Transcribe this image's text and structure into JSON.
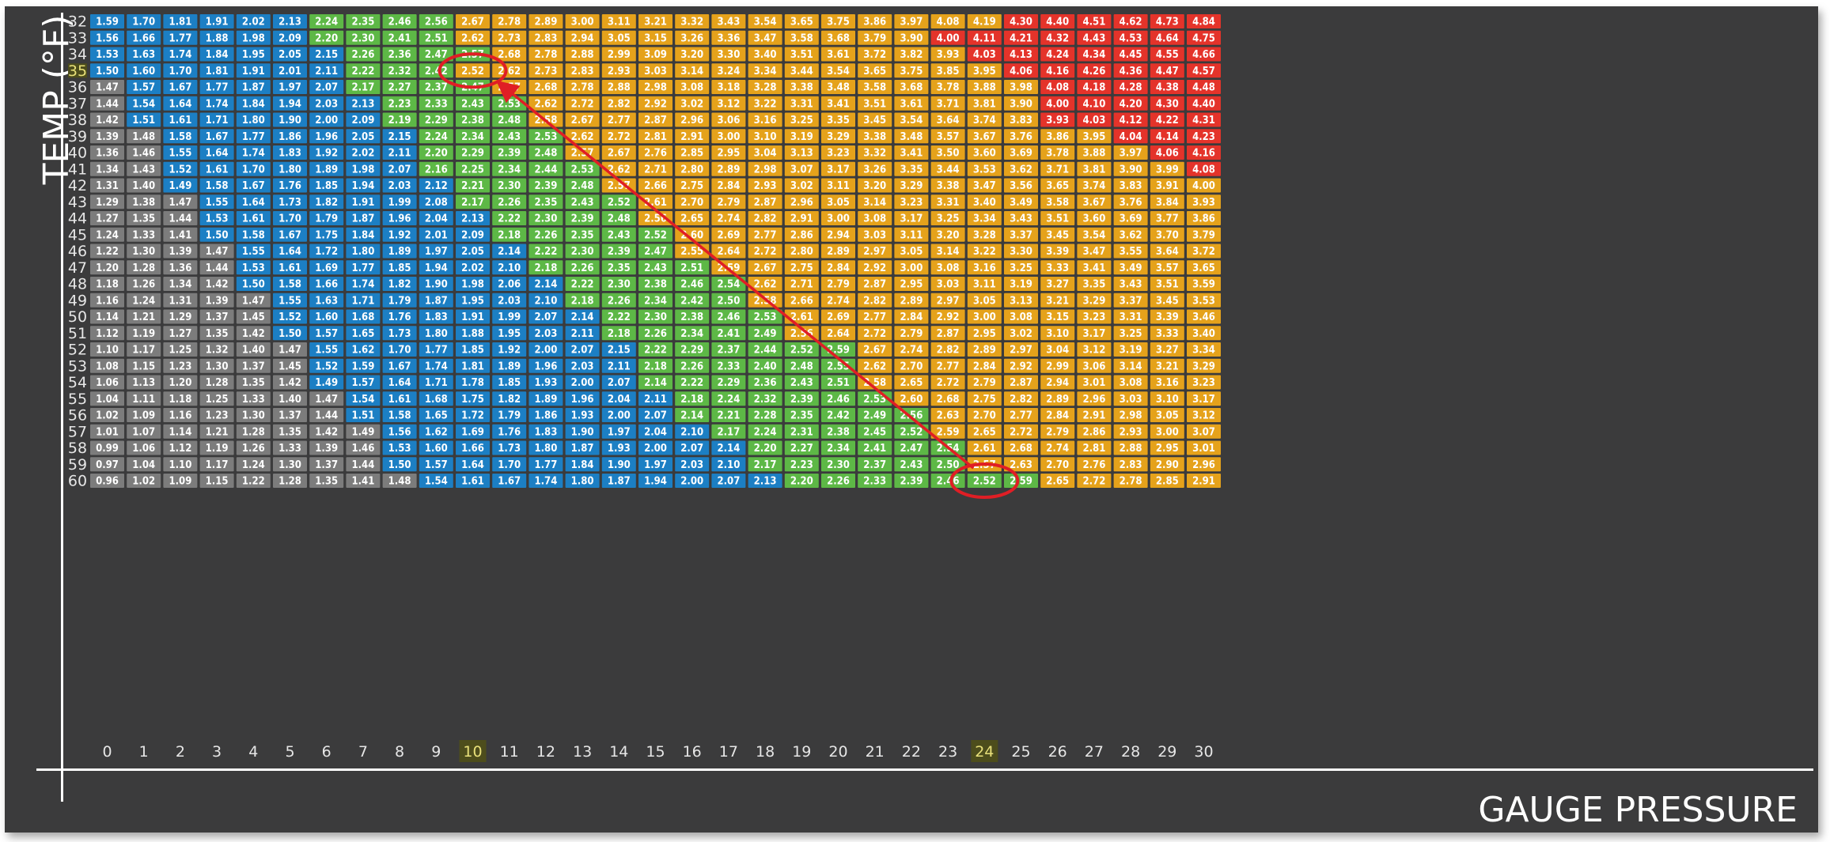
{
  "chart_data": {
    "type": "heatmap",
    "title": "",
    "xlabel": "GAUGE PRESSURE",
    "ylabel": "TEMP (°F)",
    "x": [
      0,
      1,
      2,
      3,
      4,
      5,
      6,
      7,
      8,
      9,
      10,
      11,
      12,
      13,
      14,
      15,
      16,
      17,
      18,
      19,
      20,
      21,
      22,
      23,
      24,
      25,
      26,
      27,
      28,
      29,
      30
    ],
    "y": [
      32,
      33,
      34,
      35,
      36,
      37,
      38,
      39,
      40,
      41,
      42,
      43,
      44,
      45,
      46,
      47,
      48,
      49,
      50,
      51,
      52,
      53,
      54,
      55,
      56,
      57,
      58,
      59,
      60
    ],
    "highlight_x": 10,
    "highlight_y": 35,
    "highlight_x_second": 24,
    "circled_cells": [
      {
        "temp": 35,
        "pressure": 10,
        "value": "2.52"
      },
      {
        "temp": 60,
        "pressure": 24,
        "value": "2.52"
      }
    ],
    "arrow": {
      "from": {
        "temp": 60,
        "pressure": 24
      },
      "to": {
        "temp": 36,
        "pressure": 11
      }
    },
    "colors": {
      "gray": "#7c7c7c",
      "blue": "#1c7fc4",
      "green": "#5db846",
      "orange": "#e5a21b",
      "red": "#e4332a",
      "highlight_label_bg": "#4d4d1c",
      "highlight_label_text": "#e8e07a",
      "circle": "#e01e25",
      "panel": "#3b3b3c",
      "frame": "#ffffff"
    },
    "band_start": [
      [
        0,
        0,
        6,
        10,
        25
      ],
      [
        0,
        0,
        6,
        10,
        23
      ],
      [
        0,
        0,
        7,
        11,
        24
      ],
      [
        0,
        0,
        7,
        10,
        25
      ],
      [
        0,
        1,
        7,
        11,
        26
      ],
      [
        0,
        1,
        8,
        12,
        26
      ],
      [
        0,
        1,
        8,
        12,
        26
      ],
      [
        0,
        2,
        9,
        13,
        28
      ],
      [
        0,
        2,
        9,
        13,
        29
      ],
      [
        0,
        2,
        9,
        14,
        30
      ],
      [
        0,
        2,
        10,
        14,
        31
      ],
      [
        0,
        3,
        10,
        15,
        31
      ],
      [
        0,
        3,
        11,
        15,
        31
      ],
      [
        0,
        3,
        11,
        16,
        31
      ],
      [
        0,
        4,
        12,
        16,
        31
      ],
      [
        0,
        4,
        12,
        17,
        31
      ],
      [
        0,
        4,
        13,
        18,
        31
      ],
      [
        0,
        5,
        13,
        18,
        31
      ],
      [
        0,
        5,
        14,
        19,
        31
      ],
      [
        0,
        5,
        14,
        19,
        31
      ],
      [
        0,
        6,
        15,
        21,
        31
      ],
      [
        0,
        6,
        15,
        21,
        31
      ],
      [
        0,
        6,
        15,
        21,
        31
      ],
      [
        0,
        7,
        16,
        22,
        31
      ],
      [
        0,
        7,
        16,
        23,
        31
      ],
      [
        0,
        8,
        17,
        23,
        31
      ],
      [
        0,
        8,
        18,
        24,
        31
      ],
      [
        0,
        8,
        18,
        24,
        31
      ],
      [
        0,
        9,
        19,
        26,
        31
      ]
    ],
    "values": [
      [
        "1.59",
        "1.70",
        "1.81",
        "1.91",
        "2.02",
        "2.13",
        "2.24",
        "2.35",
        "2.46",
        "2.56",
        "2.67",
        "2.78",
        "2.89",
        "3.00",
        "3.11",
        "3.21",
        "3.32",
        "3.43",
        "3.54",
        "3.65",
        "3.75",
        "3.86",
        "3.97",
        "4.08",
        "4.19",
        "4.30",
        "4.40",
        "4.51",
        "4.62",
        "4.73",
        "4.84"
      ],
      [
        "1.56",
        "1.66",
        "1.77",
        "1.88",
        "1.98",
        "2.09",
        "2.20",
        "2.30",
        "2.41",
        "2.51",
        "2.62",
        "2.73",
        "2.83",
        "2.94",
        "3.05",
        "3.15",
        "3.26",
        "3.36",
        "3.47",
        "3.58",
        "3.68",
        "3.79",
        "3.90",
        "4.00",
        "4.11",
        "4.21",
        "4.32",
        "4.43",
        "4.53",
        "4.64",
        "4.75"
      ],
      [
        "1.53",
        "1.63",
        "1.74",
        "1.84",
        "1.95",
        "2.05",
        "2.15",
        "2.26",
        "2.36",
        "2.47",
        "2.57",
        "2.68",
        "2.78",
        "2.88",
        "2.99",
        "3.09",
        "3.20",
        "3.30",
        "3.40",
        "3.51",
        "3.61",
        "3.72",
        "3.82",
        "3.93",
        "4.03",
        "4.13",
        "4.24",
        "4.34",
        "4.45",
        "4.55",
        "4.66"
      ],
      [
        "1.50",
        "1.60",
        "1.70",
        "1.81",
        "1.91",
        "2.01",
        "2.11",
        "2.22",
        "2.32",
        "2.42",
        "2.52",
        "2.62",
        "2.73",
        "2.83",
        "2.93",
        "3.03",
        "3.14",
        "3.24",
        "3.34",
        "3.44",
        "3.54",
        "3.65",
        "3.75",
        "3.85",
        "3.95",
        "4.06",
        "4.16",
        "4.26",
        "4.36",
        "4.47",
        "4.57"
      ],
      [
        "1.47",
        "1.57",
        "1.67",
        "1.77",
        "1.87",
        "1.97",
        "2.07",
        "2.17",
        "2.27",
        "2.37",
        "2.47",
        "2.57",
        "2.68",
        "2.78",
        "2.88",
        "2.98",
        "3.08",
        "3.18",
        "3.28",
        "3.38",
        "3.48",
        "3.58",
        "3.68",
        "3.78",
        "3.88",
        "3.98",
        "4.08",
        "4.18",
        "4.28",
        "4.38",
        "4.48"
      ],
      [
        "1.44",
        "1.54",
        "1.64",
        "1.74",
        "1.84",
        "1.94",
        "2.03",
        "2.13",
        "2.23",
        "2.33",
        "2.43",
        "2.53",
        "2.62",
        "2.72",
        "2.82",
        "2.92",
        "3.02",
        "3.12",
        "3.22",
        "3.31",
        "3.41",
        "3.51",
        "3.61",
        "3.71",
        "3.81",
        "3.90",
        "4.00",
        "4.10",
        "4.20",
        "4.30",
        "4.40"
      ],
      [
        "1.42",
        "1.51",
        "1.61",
        "1.71",
        "1.80",
        "1.90",
        "2.00",
        "2.09",
        "2.19",
        "2.29",
        "2.38",
        "2.48",
        "2.58",
        "2.67",
        "2.77",
        "2.87",
        "2.96",
        "3.06",
        "3.16",
        "3.25",
        "3.35",
        "3.45",
        "3.54",
        "3.64",
        "3.74",
        "3.83",
        "3.93",
        "4.03",
        "4.12",
        "4.22",
        "4.31"
      ],
      [
        "1.39",
        "1.48",
        "1.58",
        "1.67",
        "1.77",
        "1.86",
        "1.96",
        "2.05",
        "2.15",
        "2.24",
        "2.34",
        "2.43",
        "2.53",
        "2.62",
        "2.72",
        "2.81",
        "2.91",
        "3.00",
        "3.10",
        "3.19",
        "3.29",
        "3.38",
        "3.48",
        "3.57",
        "3.67",
        "3.76",
        "3.86",
        "3.95",
        "4.04",
        "4.14",
        "4.23"
      ],
      [
        "1.36",
        "1.46",
        "1.55",
        "1.64",
        "1.74",
        "1.83",
        "1.92",
        "2.02",
        "2.11",
        "2.20",
        "2.29",
        "2.39",
        "2.48",
        "2.57",
        "2.67",
        "2.76",
        "2.85",
        "2.95",
        "3.04",
        "3.13",
        "3.23",
        "3.32",
        "3.41",
        "3.50",
        "3.60",
        "3.69",
        "3.78",
        "3.88",
        "3.97",
        "4.06",
        "4.16"
      ],
      [
        "1.34",
        "1.43",
        "1.52",
        "1.61",
        "1.70",
        "1.80",
        "1.89",
        "1.98",
        "2.07",
        "2.16",
        "2.25",
        "2.34",
        "2.44",
        "2.53",
        "2.62",
        "2.71",
        "2.80",
        "2.89",
        "2.98",
        "3.07",
        "3.17",
        "3.26",
        "3.35",
        "3.44",
        "3.53",
        "3.62",
        "3.71",
        "3.81",
        "3.90",
        "3.99",
        "4.08"
      ],
      [
        "1.31",
        "1.40",
        "1.49",
        "1.58",
        "1.67",
        "1.76",
        "1.85",
        "1.94",
        "2.03",
        "2.12",
        "2.21",
        "2.30",
        "2.39",
        "2.48",
        "2.57",
        "2.66",
        "2.75",
        "2.84",
        "2.93",
        "3.02",
        "3.11",
        "3.20",
        "3.29",
        "3.38",
        "3.47",
        "3.56",
        "3.65",
        "3.74",
        "3.83",
        "3.91",
        "4.00"
      ],
      [
        "1.29",
        "1.38",
        "1.47",
        "1.55",
        "1.64",
        "1.73",
        "1.82",
        "1.91",
        "1.99",
        "2.08",
        "2.17",
        "2.26",
        "2.35",
        "2.43",
        "2.52",
        "2.61",
        "2.70",
        "2.79",
        "2.87",
        "2.96",
        "3.05",
        "3.14",
        "3.23",
        "3.31",
        "3.40",
        "3.49",
        "3.58",
        "3.67",
        "3.76",
        "3.84",
        "3.93"
      ],
      [
        "1.27",
        "1.35",
        "1.44",
        "1.53",
        "1.61",
        "1.70",
        "1.79",
        "1.87",
        "1.96",
        "2.04",
        "2.13",
        "2.22",
        "2.30",
        "2.39",
        "2.48",
        "2.56",
        "2.65",
        "2.74",
        "2.82",
        "2.91",
        "3.00",
        "3.08",
        "3.17",
        "3.25",
        "3.34",
        "3.43",
        "3.51",
        "3.60",
        "3.69",
        "3.77",
        "3.86"
      ],
      [
        "1.24",
        "1.33",
        "1.41",
        "1.50",
        "1.58",
        "1.67",
        "1.75",
        "1.84",
        "1.92",
        "2.01",
        "2.09",
        "2.18",
        "2.26",
        "2.35",
        "2.43",
        "2.52",
        "2.60",
        "2.69",
        "2.77",
        "2.86",
        "2.94",
        "3.03",
        "3.11",
        "3.20",
        "3.28",
        "3.37",
        "3.45",
        "3.54",
        "3.62",
        "3.70",
        "3.79"
      ],
      [
        "1.22",
        "1.30",
        "1.39",
        "1.47",
        "1.55",
        "1.64",
        "1.72",
        "1.80",
        "1.89",
        "1.97",
        "2.05",
        "2.14",
        "2.22",
        "2.30",
        "2.39",
        "2.47",
        "2.55",
        "2.64",
        "2.72",
        "2.80",
        "2.89",
        "2.97",
        "3.05",
        "3.14",
        "3.22",
        "3.30",
        "3.39",
        "3.47",
        "3.55",
        "3.64",
        "3.72"
      ],
      [
        "1.20",
        "1.28",
        "1.36",
        "1.44",
        "1.53",
        "1.61",
        "1.69",
        "1.77",
        "1.85",
        "1.94",
        "2.02",
        "2.10",
        "2.18",
        "2.26",
        "2.35",
        "2.43",
        "2.51",
        "2.59",
        "2.67",
        "2.75",
        "2.84",
        "2.92",
        "3.00",
        "3.08",
        "3.16",
        "3.25",
        "3.33",
        "3.41",
        "3.49",
        "3.57",
        "3.65"
      ],
      [
        "1.18",
        "1.26",
        "1.34",
        "1.42",
        "1.50",
        "1.58",
        "1.66",
        "1.74",
        "1.82",
        "1.90",
        "1.98",
        "2.06",
        "2.14",
        "2.22",
        "2.30",
        "2.38",
        "2.46",
        "2.54",
        "2.62",
        "2.71",
        "2.79",
        "2.87",
        "2.95",
        "3.03",
        "3.11",
        "3.19",
        "3.27",
        "3.35",
        "3.43",
        "3.51",
        "3.59"
      ],
      [
        "1.16",
        "1.24",
        "1.31",
        "1.39",
        "1.47",
        "1.55",
        "1.63",
        "1.71",
        "1.79",
        "1.87",
        "1.95",
        "2.03",
        "2.10",
        "2.18",
        "2.26",
        "2.34",
        "2.42",
        "2.50",
        "2.58",
        "2.66",
        "2.74",
        "2.82",
        "2.89",
        "2.97",
        "3.05",
        "3.13",
        "3.21",
        "3.29",
        "3.37",
        "3.45",
        "3.53"
      ],
      [
        "1.14",
        "1.21",
        "1.29",
        "1.37",
        "1.45",
        "1.52",
        "1.60",
        "1.68",
        "1.76",
        "1.83",
        "1.91",
        "1.99",
        "2.07",
        "2.14",
        "2.22",
        "2.30",
        "2.38",
        "2.46",
        "2.53",
        "2.61",
        "2.69",
        "2.77",
        "2.84",
        "2.92",
        "3.00",
        "3.08",
        "3.15",
        "3.23",
        "3.31",
        "3.39",
        "3.46"
      ],
      [
        "1.12",
        "1.19",
        "1.27",
        "1.35",
        "1.42",
        "1.50",
        "1.57",
        "1.65",
        "1.73",
        "1.80",
        "1.88",
        "1.95",
        "2.03",
        "2.11",
        "2.18",
        "2.26",
        "2.34",
        "2.41",
        "2.49",
        "2.56",
        "2.64",
        "2.72",
        "2.79",
        "2.87",
        "2.95",
        "3.02",
        "3.10",
        "3.17",
        "3.25",
        "3.33",
        "3.40"
      ],
      [
        "1.10",
        "1.17",
        "1.25",
        "1.32",
        "1.40",
        "1.47",
        "1.55",
        "1.62",
        "1.70",
        "1.77",
        "1.85",
        "1.92",
        "2.00",
        "2.07",
        "2.15",
        "2.22",
        "2.29",
        "2.37",
        "2.44",
        "2.52",
        "2.59",
        "2.67",
        "2.74",
        "2.82",
        "2.89",
        "2.97",
        "3.04",
        "3.12",
        "3.19",
        "3.27",
        "3.34"
      ],
      [
        "1.08",
        "1.15",
        "1.23",
        "1.30",
        "1.37",
        "1.45",
        "1.52",
        "1.59",
        "1.67",
        "1.74",
        "1.81",
        "1.89",
        "1.96",
        "2.03",
        "2.11",
        "2.18",
        "2.26",
        "2.33",
        "2.40",
        "2.48",
        "2.55",
        "2.62",
        "2.70",
        "2.77",
        "2.84",
        "2.92",
        "2.99",
        "3.06",
        "3.14",
        "3.21",
        "3.29"
      ],
      [
        "1.06",
        "1.13",
        "1.20",
        "1.28",
        "1.35",
        "1.42",
        "1.49",
        "1.57",
        "1.64",
        "1.71",
        "1.78",
        "1.85",
        "1.93",
        "2.00",
        "2.07",
        "2.14",
        "2.22",
        "2.29",
        "2.36",
        "2.43",
        "2.51",
        "2.58",
        "2.65",
        "2.72",
        "2.79",
        "2.87",
        "2.94",
        "3.01",
        "3.08",
        "3.16",
        "3.23"
      ],
      [
        "1.04",
        "1.11",
        "1.18",
        "1.25",
        "1.33",
        "1.40",
        "1.47",
        "1.54",
        "1.61",
        "1.68",
        "1.75",
        "1.82",
        "1.89",
        "1.96",
        "2.04",
        "2.11",
        "2.18",
        "2.24",
        "2.32",
        "2.39",
        "2.46",
        "2.53",
        "2.60",
        "2.68",
        "2.75",
        "2.82",
        "2.89",
        "2.96",
        "3.03",
        "3.10",
        "3.17"
      ],
      [
        "1.02",
        "1.09",
        "1.16",
        "1.23",
        "1.30",
        "1.37",
        "1.44",
        "1.51",
        "1.58",
        "1.65",
        "1.72",
        "1.79",
        "1.86",
        "1.93",
        "2.00",
        "2.07",
        "2.14",
        "2.21",
        "2.28",
        "2.35",
        "2.42",
        "2.49",
        "2.56",
        "2.63",
        "2.70",
        "2.77",
        "2.84",
        "2.91",
        "2.98",
        "3.05",
        "3.12"
      ],
      [
        "1.01",
        "1.07",
        "1.14",
        "1.21",
        "1.28",
        "1.35",
        "1.42",
        "1.49",
        "1.56",
        "1.62",
        "1.69",
        "1.76",
        "1.83",
        "1.90",
        "1.97",
        "2.04",
        "2.10",
        "2.17",
        "2.24",
        "2.31",
        "2.38",
        "2.45",
        "2.52",
        "2.59",
        "2.65",
        "2.72",
        "2.79",
        "2.86",
        "2.93",
        "3.00",
        "3.07"
      ],
      [
        "0.99",
        "1.06",
        "1.12",
        "1.19",
        "1.26",
        "1.33",
        "1.39",
        "1.46",
        "1.53",
        "1.60",
        "1.66",
        "1.73",
        "1.80",
        "1.87",
        "1.93",
        "2.00",
        "2.07",
        "2.14",
        "2.20",
        "2.27",
        "2.34",
        "2.41",
        "2.47",
        "2.54",
        "2.61",
        "2.68",
        "2.74",
        "2.81",
        "2.88",
        "2.95",
        "3.01"
      ],
      [
        "0.97",
        "1.04",
        "1.10",
        "1.17",
        "1.24",
        "1.30",
        "1.37",
        "1.44",
        "1.50",
        "1.57",
        "1.64",
        "1.70",
        "1.77",
        "1.84",
        "1.90",
        "1.97",
        "2.03",
        "2.10",
        "2.17",
        "2.23",
        "2.30",
        "2.37",
        "2.43",
        "2.50",
        "2.57",
        "2.63",
        "2.70",
        "2.76",
        "2.83",
        "2.90",
        "2.96"
      ],
      [
        "0.96",
        "1.02",
        "1.09",
        "1.15",
        "1.22",
        "1.28",
        "1.35",
        "1.41",
        "1.48",
        "1.54",
        "1.61",
        "1.67",
        "1.74",
        "1.80",
        "1.87",
        "1.94",
        "2.00",
        "2.07",
        "2.13",
        "2.20",
        "2.26",
        "2.33",
        "2.39",
        "2.46",
        "2.52",
        "2.59",
        "2.65",
        "2.72",
        "2.78",
        "2.85",
        "2.91"
      ]
    ]
  }
}
